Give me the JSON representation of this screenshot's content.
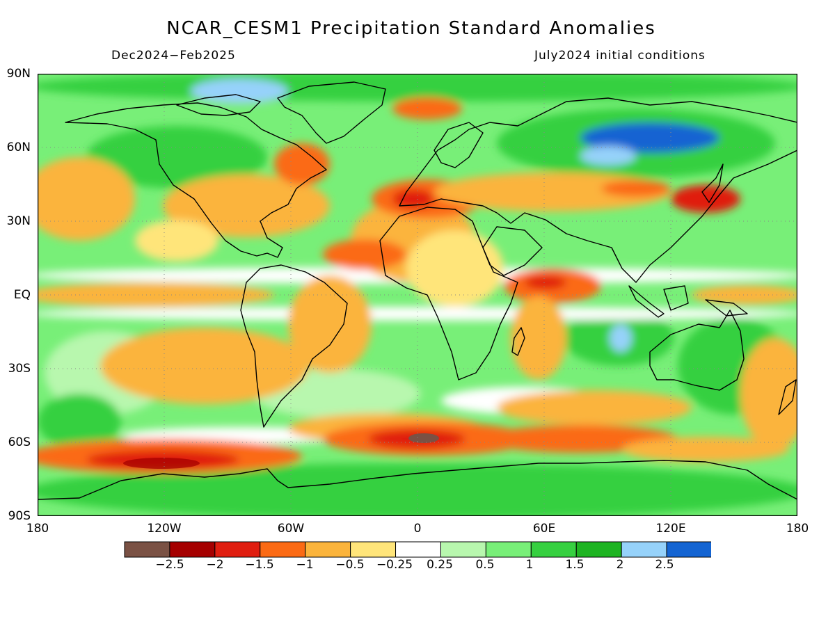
{
  "title": "NCAR_CESM1 Precipitation Standard Anomalies",
  "period": "Dec2024−Feb2025",
  "init": "July2024 initial conditions",
  "lat_labels": [
    "90N",
    "60N",
    "30N",
    "EQ",
    "30S",
    "60S",
    "90S"
  ],
  "lon_labels": [
    "180",
    "120W",
    "60W",
    "0",
    "60E",
    "120E",
    "180"
  ],
  "colorbar": {
    "colors": [
      "#7a5144",
      "#a50000",
      "#e01e10",
      "#fb6a14",
      "#fbb43c",
      "#ffe57a",
      "#ffffff",
      "#b8f7ae",
      "#78ef78",
      "#36d040",
      "#1eb422",
      "#96d2fa",
      "#1464d2"
    ],
    "labels": [
      "−2.5",
      "−2",
      "−1.5",
      "−1",
      "−0.5",
      "−0.25",
      "0.25",
      "0.5",
      "1",
      "1.5",
      "2",
      "2.5"
    ]
  }
}
